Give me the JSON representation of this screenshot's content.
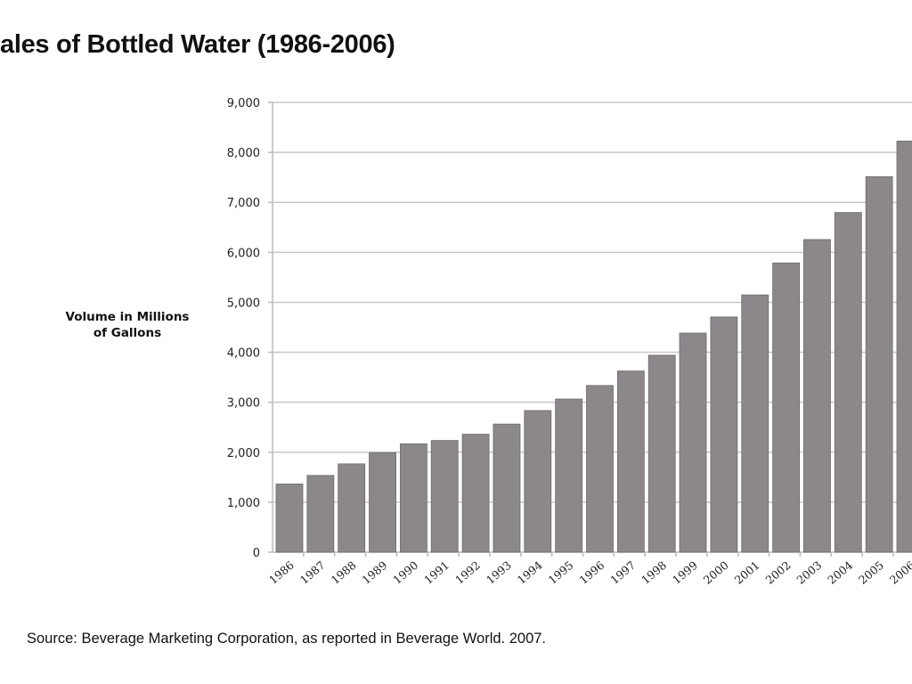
{
  "chart_data": {
    "type": "bar",
    "title": "ales of Bottled Water (1986-2006)",
    "ylabel": "Volume in Millions of Gallons",
    "ylabel_lines": [
      "Volume in Millions",
      "of Gallons"
    ],
    "xlabel": "",
    "categories": [
      "1986",
      "1987",
      "1988",
      "1989",
      "1990",
      "1991",
      "1992",
      "1993",
      "1994",
      "1995",
      "1996",
      "1997",
      "1998",
      "1999",
      "2000",
      "2001",
      "2002",
      "2003",
      "2004",
      "2005",
      "2006"
    ],
    "values": [
      1365,
      1536,
      1767,
      1991,
      2169,
      2235,
      2360,
      2564,
      2835,
      3065,
      3336,
      3626,
      3942,
      4384,
      4707,
      5148,
      5788,
      6256,
      6797,
      7515,
      8227
    ],
    "ylim": [
      0,
      9000
    ],
    "yticks": [
      "0",
      "1,000",
      "2,000",
      "3,000",
      "4,000",
      "5,000",
      "6,000",
      "7,000",
      "8,000",
      "9,000"
    ],
    "grid": true,
    "bar_color": "#8b878b",
    "source": "Source: Beverage Marketing Corporation, as reported in Beverage World. 2007."
  }
}
